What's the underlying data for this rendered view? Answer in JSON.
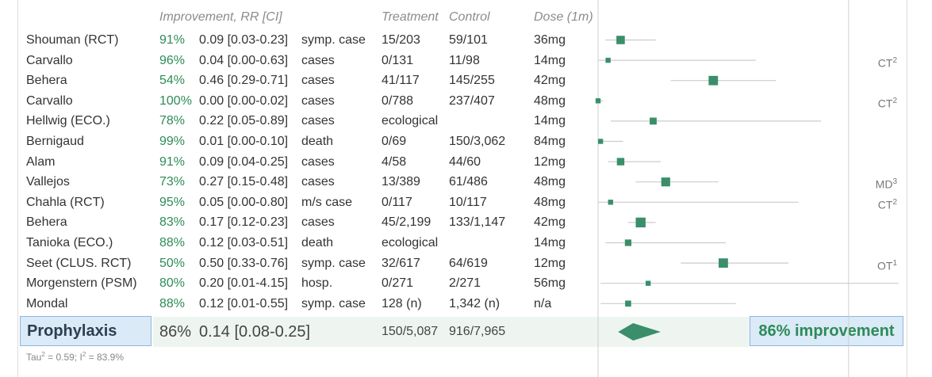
{
  "headers": {
    "improvement": "Improvement, RR [CI]",
    "treatment": "Treatment",
    "control": "Control",
    "dose": "Dose (1m)"
  },
  "studies": [
    {
      "name": "Shouman (RCT)",
      "pct": "91%",
      "rr_text": "0.09 [0.03-0.23]",
      "outcome": "symp. case",
      "treatment": "15/203",
      "control": "59/101",
      "dose": "36mg",
      "note": "",
      "note_sup": ""
    },
    {
      "name": "Carvallo",
      "pct": "96%",
      "rr_text": "0.04 [0.00-0.63]",
      "outcome": "cases",
      "treatment": "0/131",
      "control": "11/98",
      "dose": "14mg",
      "note": "CT",
      "note_sup": "2"
    },
    {
      "name": "Behera",
      "pct": "54%",
      "rr_text": "0.46 [0.29-0.71]",
      "outcome": "cases",
      "treatment": "41/117",
      "control": "145/255",
      "dose": "42mg",
      "note": "",
      "note_sup": ""
    },
    {
      "name": "Carvallo",
      "pct": "100%",
      "rr_text": "0.00 [0.00-0.02]",
      "outcome": "cases",
      "treatment": "0/788",
      "control": "237/407",
      "dose": "48mg",
      "note": "CT",
      "note_sup": "2"
    },
    {
      "name": "Hellwig (ECO.)",
      "pct": "78%",
      "rr_text": "0.22 [0.05-0.89]",
      "outcome": "cases",
      "treatment": "ecological",
      "control": "",
      "dose": "14mg",
      "note": "",
      "note_sup": ""
    },
    {
      "name": "Bernigaud",
      "pct": "99%",
      "rr_text": "0.01 [0.00-0.10]",
      "outcome": "death",
      "treatment": "0/69",
      "control": "150/3,062",
      "dose": "84mg",
      "note": "",
      "note_sup": ""
    },
    {
      "name": "Alam",
      "pct": "91%",
      "rr_text": "0.09 [0.04-0.25]",
      "outcome": "cases",
      "treatment": "4/58",
      "control": "44/60",
      "dose": "12mg",
      "note": "",
      "note_sup": ""
    },
    {
      "name": "Vallejos",
      "pct": "73%",
      "rr_text": "0.27 [0.15-0.48]",
      "outcome": "cases",
      "treatment": "13/389",
      "control": "61/486",
      "dose": "48mg",
      "note": "MD",
      "note_sup": "3"
    },
    {
      "name": "Chahla (RCT)",
      "pct": "95%",
      "rr_text": "0.05 [0.00-0.80]",
      "outcome": "m/s case",
      "treatment": "0/117",
      "control": "10/117",
      "dose": "48mg",
      "note": "CT",
      "note_sup": "2"
    },
    {
      "name": "Behera",
      "pct": "83%",
      "rr_text": "0.17 [0.12-0.23]",
      "outcome": "cases",
      "treatment": "45/2,199",
      "control": "133/1,147",
      "dose": "42mg",
      "note": "",
      "note_sup": ""
    },
    {
      "name": "Tanioka (ECO.)",
      "pct": "88%",
      "rr_text": "0.12 [0.03-0.51]",
      "outcome": "death",
      "treatment": "ecological",
      "control": "",
      "dose": "14mg",
      "note": "",
      "note_sup": ""
    },
    {
      "name": "Seet (CLUS. RCT)",
      "pct": "50%",
      "rr_text": "0.50 [0.33-0.76]",
      "outcome": "symp. case",
      "treatment": "32/617",
      "control": "64/619",
      "dose": "12mg",
      "note": "OT",
      "note_sup": "1"
    },
    {
      "name": "Morgenstern (PSM)",
      "pct": "80%",
      "rr_text": "0.20 [0.01-4.15]",
      "outcome": "hosp.",
      "treatment": "0/271",
      "control": "2/271",
      "dose": "56mg",
      "note": "",
      "note_sup": ""
    },
    {
      "name": "Mondal",
      "pct": "88%",
      "rr_text": "0.12 [0.01-0.55]",
      "outcome": "symp. case",
      "treatment": "128 (n)",
      "control": "1,342 (n)",
      "dose": "n/a",
      "note": "",
      "note_sup": ""
    }
  ],
  "summary": {
    "label": "Prophylaxis",
    "pct": "86%",
    "rr_text": "0.14 [0.08-0.25]",
    "treatment": "150/5,087",
    "control": "916/7,965",
    "result": "86% improvement"
  },
  "heterogeneity": {
    "tau_label": "Tau",
    "tau_sup": "2",
    "tau_value": " = 0.59; I",
    "i_sup": "2",
    "i_value": " = 83.9%"
  },
  "colors": {
    "marker": "#3a8f6a",
    "ci_line": "#cccccc",
    "good": "#2e8b57"
  },
  "chart_data": {
    "type": "forest",
    "rr": [
      0.09,
      0.04,
      0.46,
      0.0,
      0.22,
      0.01,
      0.09,
      0.27,
      0.05,
      0.17,
      0.12,
      0.5,
      0.2,
      0.12
    ],
    "ci_low": [
      0.03,
      0.0,
      0.29,
      0.0,
      0.05,
      0.0,
      0.04,
      0.15,
      0.0,
      0.12,
      0.03,
      0.33,
      0.01,
      0.01
    ],
    "ci_high": [
      0.23,
      0.63,
      0.71,
      0.02,
      0.89,
      0.1,
      0.25,
      0.48,
      0.8,
      0.23,
      0.51,
      0.76,
      4.15,
      0.55
    ],
    "weight": [
      0.55,
      0.2,
      0.65,
      0.2,
      0.4,
      0.2,
      0.45,
      0.6,
      0.2,
      0.7,
      0.35,
      0.65,
      0.2,
      0.3
    ],
    "summary": {
      "rr": 0.14,
      "ci_low": 0.08,
      "ci_high": 0.25
    },
    "xlim": [
      0,
      1.2
    ],
    "reference_line": 1
  }
}
